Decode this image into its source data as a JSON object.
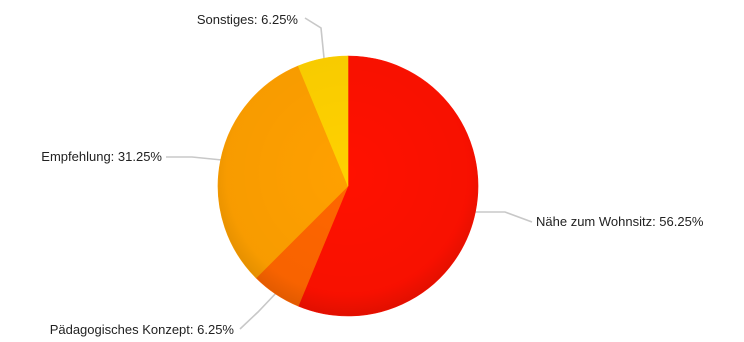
{
  "chart_data": {
    "type": "pie",
    "title": "",
    "start_angle_deg": 0,
    "direction": "clockwise",
    "slices": [
      {
        "label": "Nähe zum Wohnsitz: 56.25%",
        "value": 56.25,
        "color": "#ff1100"
      },
      {
        "label": "Pädagogisches Konzept: 6.25%",
        "value": 6.25,
        "color": "#ff6600"
      },
      {
        "label": "Empfehlung: 31.25%",
        "value": 31.25,
        "color": "#ffa000"
      },
      {
        "label": "Sonstiges: 6.25%",
        "value": 6.25,
        "color": "#ffd100"
      }
    ]
  }
}
